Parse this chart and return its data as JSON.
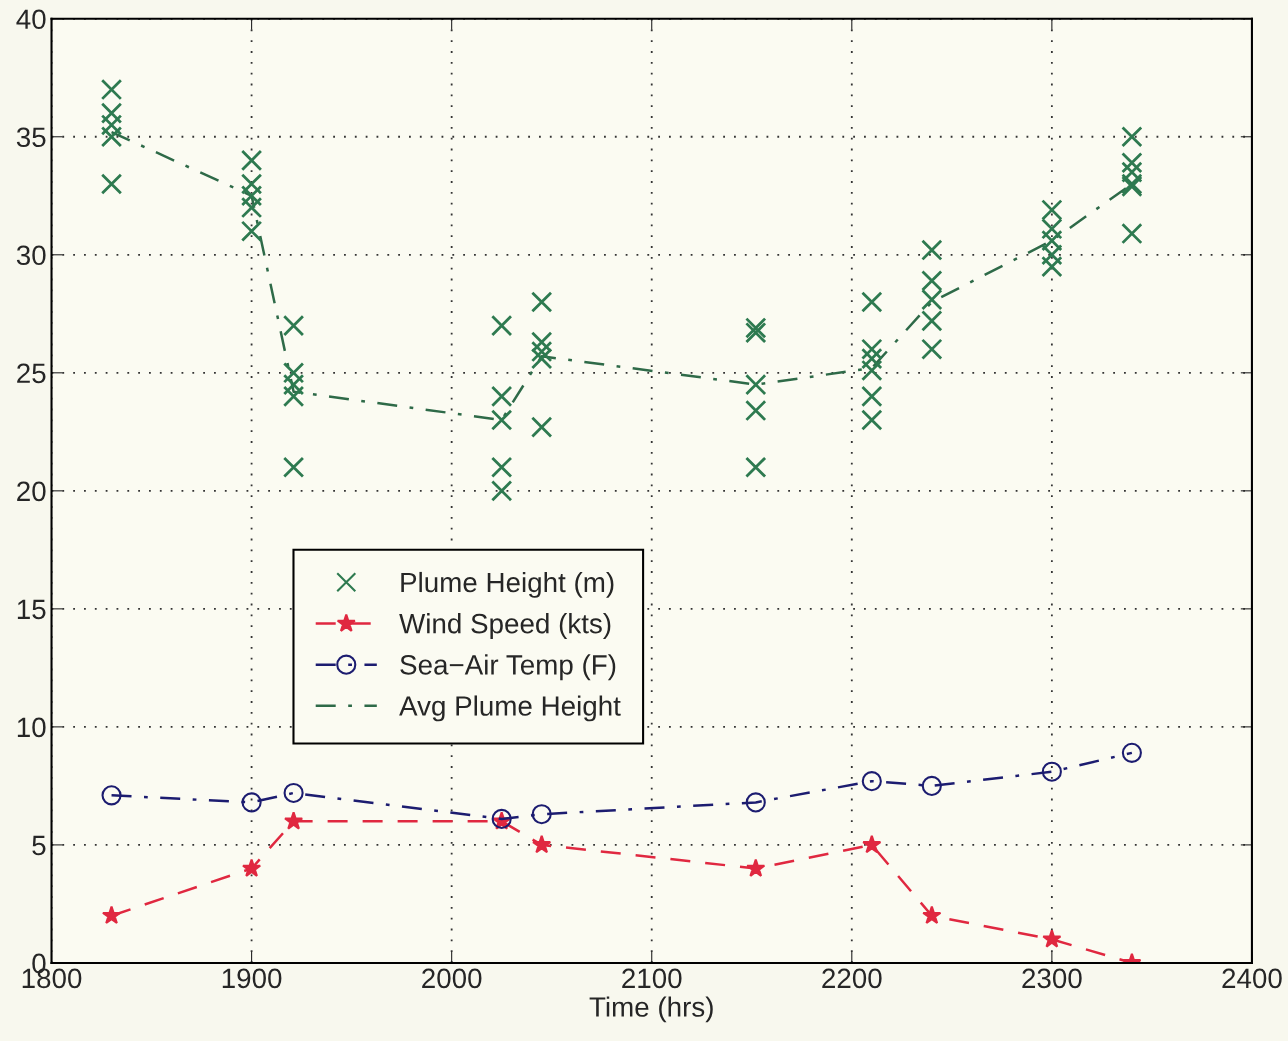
{
  "chart_data": {
    "type": "line",
    "xlabel": "Time (hrs)",
    "xlim": [
      1800,
      2400
    ],
    "xticks": [
      1800,
      1900,
      2000,
      2100,
      2200,
      2300,
      2400
    ],
    "ylim": [
      0,
      40
    ],
    "yticks": [
      0,
      5,
      10,
      15,
      20,
      25,
      30,
      35,
      40
    ],
    "grid": true,
    "legend": "left",
    "series": [
      {
        "name": "Plume Height (m)",
        "type": "scatter",
        "marker": "cross",
        "color": "#2e7a50",
        "x": [
          1830,
          1830,
          1830,
          1830,
          1830,
          1900,
          1900,
          1900,
          1900,
          1900,
          1921,
          1921,
          1921,
          1921,
          1921,
          2025,
          2025,
          2025,
          2025,
          2025,
          2045,
          2045,
          2045,
          2045,
          2045,
          2152,
          2152,
          2152,
          2152,
          2152,
          2210,
          2210,
          2210,
          2210,
          2210,
          2210,
          2240,
          2240,
          2240,
          2240,
          2240,
          2300,
          2300,
          2300,
          2300,
          2300,
          2340,
          2340,
          2340,
          2340,
          2340,
          2340
        ],
        "values": [
          37,
          36,
          35.5,
          35,
          33,
          34,
          33,
          32.5,
          32,
          31,
          27,
          25,
          24.5,
          24,
          21,
          27,
          24,
          23,
          21,
          20,
          28,
          26.3,
          25.9,
          25.6,
          22.7,
          26.9,
          26.7,
          24.5,
          23.4,
          21,
          28,
          26,
          25.6,
          25.1,
          24,
          23,
          30.2,
          28.9,
          28.1,
          27.2,
          26,
          31.9,
          31.1,
          30.6,
          30,
          29.5,
          35,
          33.9,
          33.5,
          33,
          32.9,
          30.9
        ]
      },
      {
        "name": "Wind Speed (kts)",
        "marker": "star",
        "line_style": "dashed",
        "color": "#e02840",
        "x": [
          1830,
          1900,
          1921,
          2025,
          2045,
          2152,
          2210,
          2240,
          2300,
          2340
        ],
        "values": [
          2,
          4,
          6,
          6,
          5,
          4,
          5,
          2,
          1,
          0
        ]
      },
      {
        "name": "Sea−Air Temp (F)",
        "marker": "circle",
        "line_style": "dashdot",
        "color": "#1c1c70",
        "x": [
          1830,
          1900,
          1921,
          2025,
          2045,
          2152,
          2210,
          2240,
          2300,
          2340
        ],
        "values": [
          7.1,
          6.8,
          7.2,
          6.1,
          6.3,
          6.8,
          7.7,
          7.5,
          8.1,
          8.9
        ]
      },
      {
        "name": "Avg Plume Height",
        "marker": "none",
        "line_style": "dashdot",
        "color": "#2e6a48",
        "x": [
          1830,
          1900,
          1921,
          2025,
          2045,
          2152,
          2210,
          2240,
          2300,
          2340
        ],
        "values": [
          35.2,
          32.5,
          24.2,
          23,
          25.7,
          24.5,
          25.2,
          28,
          30.6,
          33
        ]
      }
    ]
  }
}
